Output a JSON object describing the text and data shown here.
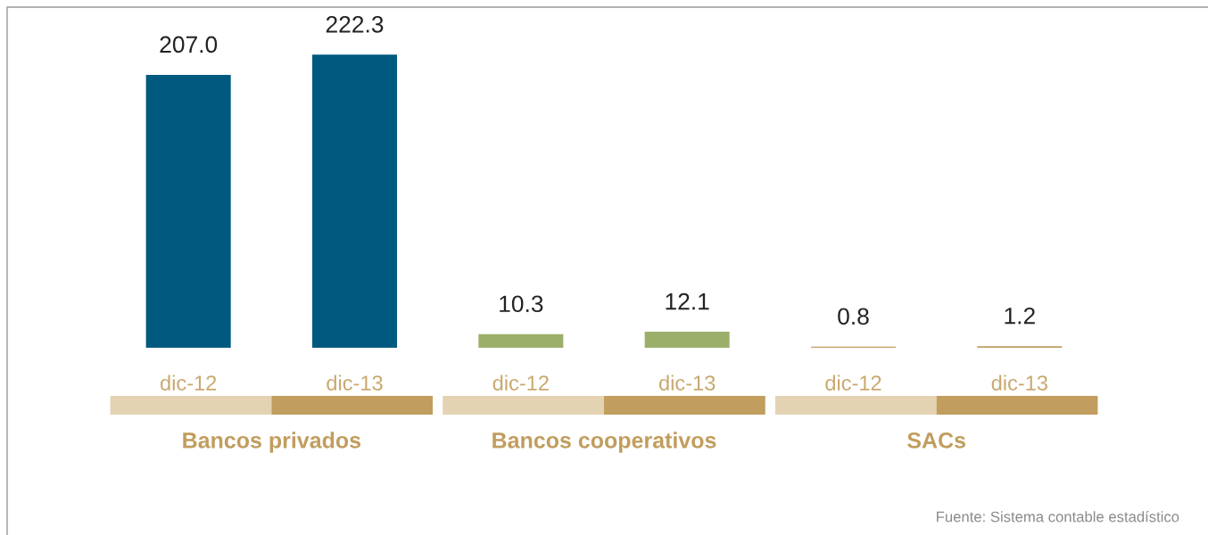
{
  "chart_data": {
    "type": "bar",
    "categories": [
      "dic-12",
      "dic-13",
      "dic-12",
      "dic-13",
      "dic-12",
      "dic-13"
    ],
    "values": [
      207.0,
      222.3,
      10.3,
      12.1,
      0.8,
      1.2
    ],
    "colors": [
      "#005a7f",
      "#005a7f",
      "#9caf6a",
      "#9caf6a",
      "#c19d5e",
      "#c19d5e"
    ],
    "ylim": [
      0,
      257
    ],
    "value_labels": [
      "207.0",
      "222.3",
      "10.3",
      "12.1",
      "0.8",
      "1.2"
    ],
    "tick_labels": "x",
    "annotations": [
      "Bancos privados",
      "Bancos cooperativos",
      "SACs",
      "Fuente: Sistema contable estadístico"
    ]
  }
}
